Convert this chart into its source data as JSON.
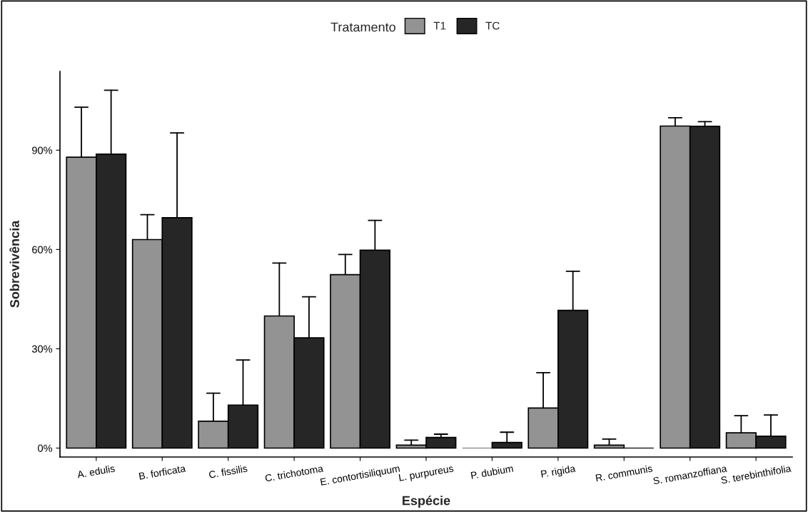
{
  "chart_data": {
    "type": "bar",
    "xlabel": "Espécie",
    "ylabel": "Sobrevivência",
    "legend_title": "Tratamento",
    "categories": [
      "A. edulis",
      "B. forficata",
      "C. fissilis",
      "C. trichotoma",
      "E. contortisiliquum",
      "L. purpureus",
      "P. dubium",
      "P. rigida",
      "R. communis",
      "S. romanzoffiana",
      "S. terebinthifolia"
    ],
    "series": [
      {
        "name": "T1",
        "color": "#939393",
        "values": [
          87.9,
          63.0,
          8.1,
          39.9,
          52.4,
          0.9,
          0,
          12.1,
          0.9,
          97.3,
          4.6
        ],
        "errors": [
          [
            87.9,
            103.0
          ],
          [
            63.0,
            70.5
          ],
          [
            8.1,
            16.6
          ],
          [
            39.9,
            55.9
          ],
          [
            52.4,
            58.5
          ],
          [
            0.9,
            2.4
          ],
          null,
          [
            12.1,
            22.8
          ],
          [
            0.9,
            2.7
          ],
          [
            97.3,
            99.8
          ],
          [
            4.6,
            9.8
          ]
        ]
      },
      {
        "name": "TC",
        "color": "#262626",
        "values": [
          88.8,
          69.6,
          13.0,
          33.3,
          59.8,
          3.2,
          1.7,
          41.6,
          0,
          97.2,
          3.6
        ],
        "errors": [
          [
            88.8,
            108.1
          ],
          [
            69.6,
            95.2
          ],
          [
            13.0,
            26.6
          ],
          [
            33.3,
            45.7
          ],
          [
            59.8,
            68.8
          ],
          [
            3.2,
            4.2
          ],
          [
            1.7,
            4.8
          ],
          [
            41.6,
            53.4
          ],
          null,
          [
            97.2,
            98.6
          ],
          [
            3.6,
            10.0
          ]
        ]
      }
    ],
    "ylim": [
      -2.7,
      113.8
    ],
    "yticks": [
      {
        "value": 0,
        "label": "0%"
      },
      {
        "value": 30,
        "label": "30%"
      },
      {
        "value": 60,
        "label": "60%"
      },
      {
        "value": 90,
        "label": "90%"
      }
    ],
    "grid": false,
    "legend": "top"
  }
}
